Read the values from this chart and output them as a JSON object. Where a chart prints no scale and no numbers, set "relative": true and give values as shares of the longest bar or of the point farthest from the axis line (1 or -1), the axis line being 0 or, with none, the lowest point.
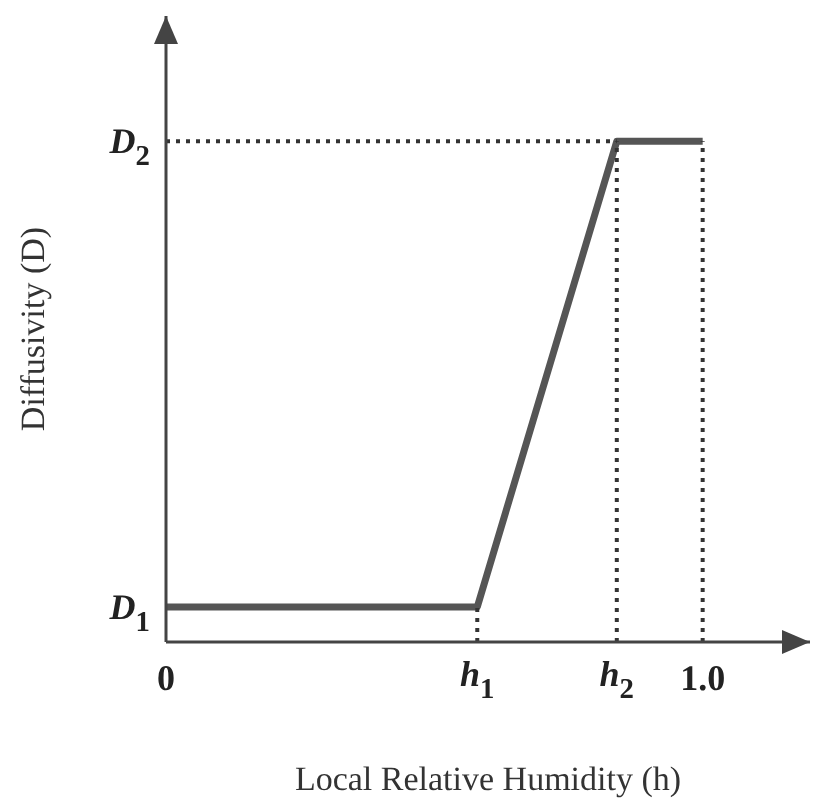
{
  "chart_data": {
    "type": "line",
    "relative": true,
    "xlabel": "Local Relative Humidity (h)",
    "ylabel": "Diffusivity (D)",
    "xlim": [
      0,
      1.2
    ],
    "xticks": [
      0,
      {
        "value": 1,
        "label": "1.0"
      }
    ],
    "annotations": [
      {
        "text": "D$_{1}$",
        "x": 0,
        "y": 0.07
      },
      {
        "text": "D$_{2}$",
        "x": 0,
        "y": 1
      },
      {
        "text": "h$_{1}$",
        "x": 0.58,
        "y": 0
      },
      {
        "text": "h$_{2}$",
        "x": 0.84,
        "y": 0
      }
    ],
    "series": [
      {
        "color": "#555555",
        "x": [
          0,
          0.58,
          0.84,
          1
        ],
        "values": [
          0.07,
          0.07,
          1,
          1
        ],
        "line_style": "solid"
      },
      {
        "color": "#333333",
        "x": [
          0.58,
          0.58
        ],
        "values": [
          0,
          0.07
        ],
        "line_style": "dotted"
      },
      {
        "color": "#333333",
        "x": [
          0.84,
          0.84
        ],
        "values": [
          0,
          1
        ],
        "line_style": "dotted"
      },
      {
        "color": "#333333",
        "x": [
          1,
          1
        ],
        "values": [
          0,
          1
        ],
        "line_style": "dotted"
      },
      {
        "color": "#333333",
        "x": [
          0,
          0.84
        ],
        "values": [
          1,
          1
        ],
        "line_style": "dotted"
      }
    ]
  }
}
